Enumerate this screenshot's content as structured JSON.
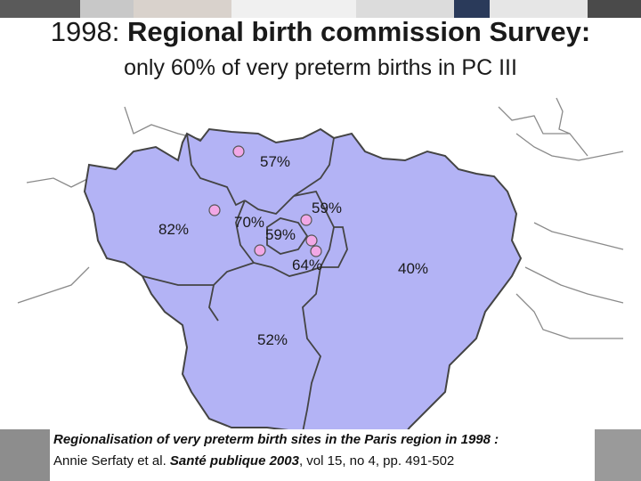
{
  "title": {
    "year": "1998",
    "separator": ": ",
    "main": "Regional birth commission Survey:"
  },
  "subtitle": "only 60% of very preterm births in PC III",
  "regions": [
    {
      "id": "north",
      "label": "57%"
    },
    {
      "id": "west",
      "label": "82%"
    },
    {
      "id": "inner-west",
      "label": "70%"
    },
    {
      "id": "paris",
      "label": "59%"
    },
    {
      "id": "inner-northeast",
      "label": "59%"
    },
    {
      "id": "inner-south",
      "label": "64%"
    },
    {
      "id": "east",
      "label": "40%"
    },
    {
      "id": "south",
      "label": "52%"
    }
  ],
  "citation": {
    "line1": "Regionalisation of very preterm birth sites in the Paris region in 1998 :",
    "line2_prefix": "Annie Serfaty et al. ",
    "journal": "Santé publique 2003",
    "line2_suffix": ", vol 15, no 4, pp. 491-502"
  },
  "colors": {
    "region_fill": "#b3b3f5",
    "border": "#555555",
    "marker": "#f2a8e6"
  }
}
